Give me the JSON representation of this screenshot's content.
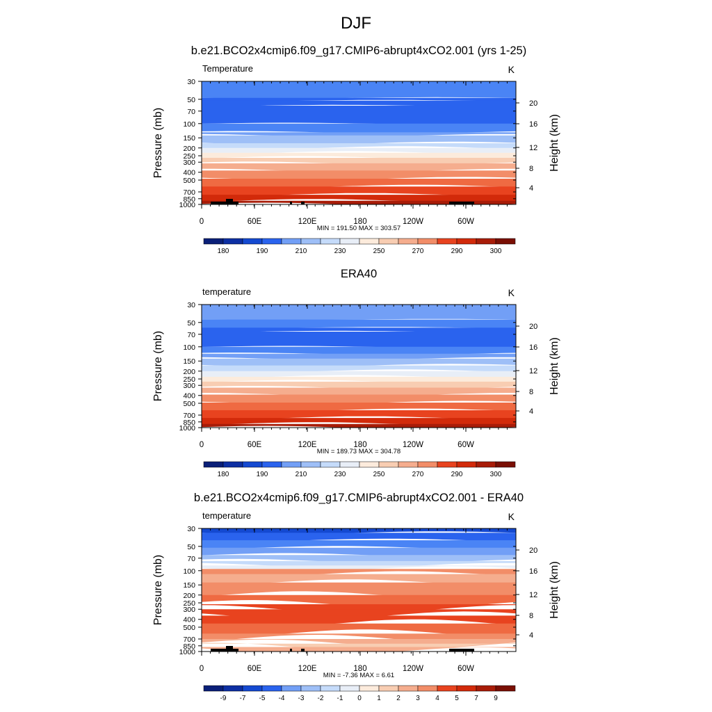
{
  "page": {
    "title": "DJF"
  },
  "colors": {
    "scale": [
      "#0a1f78",
      "#0d2fa3",
      "#1449d1",
      "#2a63ee",
      "#4a84f5",
      "#729ff6",
      "#9ebff7",
      "#c5dbfa",
      "#e8eef7",
      "#fcebdc",
      "#f8cdb2",
      "#f5ad8e",
      "#f28d68",
      "#ef6a42",
      "#e8431f",
      "#d22a0a",
      "#a81c08",
      "#7a0f04"
    ]
  },
  "chart_data": [
    {
      "type": "contour",
      "title": "b.e21.BCO2x4cmip6.f09_g17.CMIP6-abrupt4xCO2.001 (yrs 1-25)",
      "left_label": "Temperature",
      "units": "K",
      "ylabel": "Pressure (mb)",
      "y2label": "Height (km)",
      "pressure_ticks": [
        "30",
        "50",
        "70",
        "100",
        "150",
        "200",
        "250",
        "300",
        "400",
        "500",
        "700",
        "850",
        "1000"
      ],
      "height_ticks": [
        "20",
        "16",
        "12",
        "8",
        "4"
      ],
      "x_ticks": [
        "0",
        "60E",
        "120E",
        "180",
        "120W",
        "60W"
      ],
      "stats": "MIN = 191.50  MAX = 303.57",
      "colorbar_labels": [
        "180",
        "190",
        "210",
        "230",
        "250",
        "270",
        "290",
        "300"
      ],
      "min": 191.5,
      "max": 303.57
    },
    {
      "type": "contour",
      "title": "ERA40",
      "left_label": "temperature",
      "units": "K",
      "ylabel": "Pressure (mb)",
      "y2label": "Height (km)",
      "pressure_ticks": [
        "30",
        "50",
        "70",
        "100",
        "150",
        "200",
        "250",
        "300",
        "400",
        "500",
        "700",
        "850",
        "1000"
      ],
      "height_ticks": [
        "20",
        "16",
        "12",
        "8",
        "4"
      ],
      "x_ticks": [
        "0",
        "60E",
        "120E",
        "180",
        "120W",
        "60W"
      ],
      "stats": "MIN = 189.73  MAX = 304.78",
      "colorbar_labels": [
        "180",
        "190",
        "210",
        "230",
        "250",
        "270",
        "290",
        "300"
      ],
      "min": 189.73,
      "max": 304.78
    },
    {
      "type": "contour",
      "title": "b.e21.BCO2x4cmip6.f09_g17.CMIP6-abrupt4xCO2.001 - ERA40",
      "left_label": "temperature",
      "units": "K",
      "ylabel": "Pressure (mb)",
      "y2label": "Height (km)",
      "pressure_ticks": [
        "30",
        "50",
        "70",
        "100",
        "150",
        "200",
        "250",
        "300",
        "400",
        "500",
        "700",
        "850",
        "1000"
      ],
      "height_ticks": [
        "20",
        "16",
        "12",
        "8",
        "4"
      ],
      "x_ticks": [
        "0",
        "60E",
        "120E",
        "180",
        "120W",
        "60W"
      ],
      "stats": "MIN =  -7.36  MAX =   6.61",
      "colorbar_labels": [
        "-9",
        "-7",
        "-5",
        "-4",
        "-3",
        "-2",
        "-1",
        "0",
        "1",
        "2",
        "3",
        "4",
        "5",
        "7",
        "9"
      ],
      "min": -7.36,
      "max": 6.61
    }
  ]
}
